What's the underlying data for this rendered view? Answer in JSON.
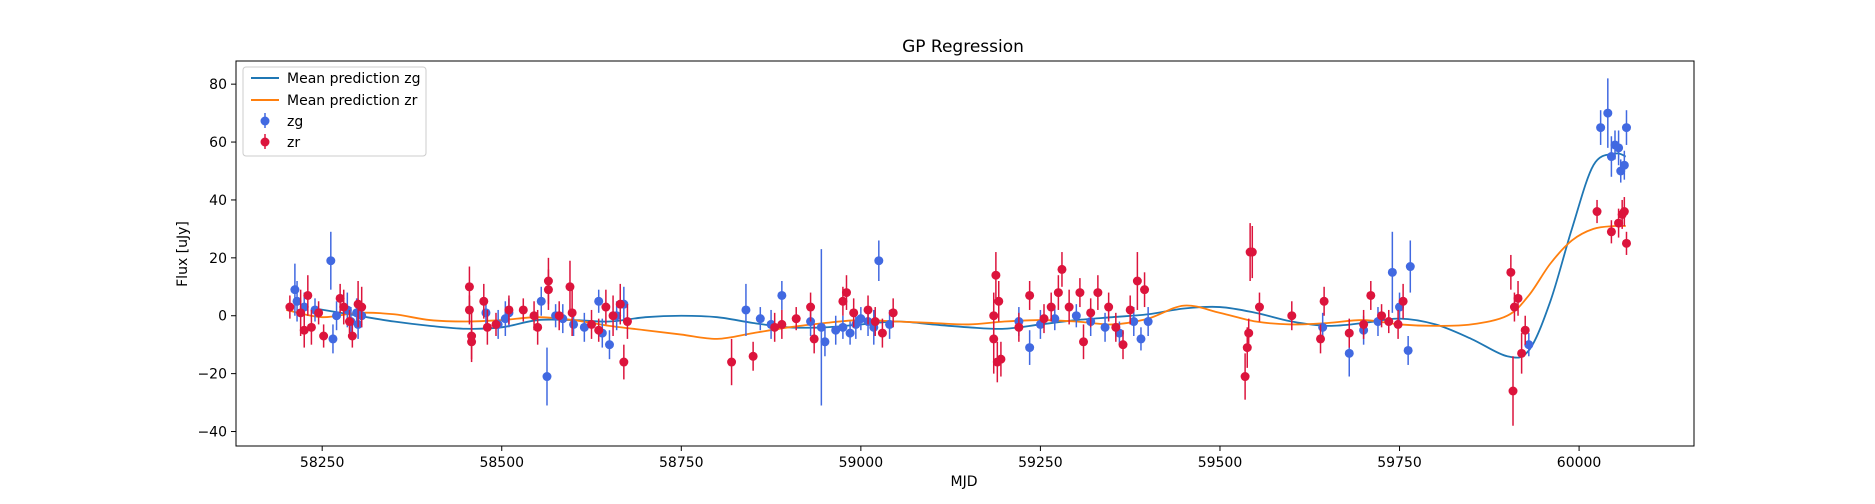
{
  "chart_data": {
    "type": "scatter",
    "title": "GP Regression",
    "xlabel": "MJD",
    "ylabel": "Flux [uJy]",
    "xlim": [
      58130,
      60160
    ],
    "ylim": [
      -45,
      88
    ],
    "xticks": [
      58250,
      58500,
      58750,
      59000,
      59250,
      59500,
      59750,
      60000
    ],
    "yticks": [
      -40,
      -20,
      0,
      20,
      40,
      60,
      80
    ],
    "grid": false,
    "legend_position": "top-left",
    "legend": [
      "Mean prediction zg",
      "Mean prediction zr",
      "zg",
      "zr"
    ],
    "series": [
      {
        "name": "Mean prediction zg",
        "kind": "line",
        "color": "#1f77b4",
        "x": [
          58240,
          58300,
          58350,
          58400,
          58450,
          58500,
          58550,
          58600,
          58650,
          58700,
          58750,
          58800,
          58850,
          58900,
          58950,
          59000,
          59050,
          59100,
          59150,
          59200,
          59250,
          59300,
          59350,
          59400,
          59450,
          59500,
          59550,
          59600,
          59650,
          59700,
          59750,
          59800,
          59850,
          59900,
          59930,
          59960,
          59990,
          60020,
          60050,
          60065
        ],
        "y": [
          2.5,
          0,
          -2,
          -3.5,
          -4.5,
          -4,
          -1.5,
          -1.5,
          -2,
          -0.5,
          0,
          -0.5,
          -2.5,
          -4,
          -4,
          -3,
          -2,
          -3,
          -4,
          -4.5,
          -3,
          -1.5,
          -0.5,
          0.5,
          2.5,
          3,
          1,
          -2,
          -3.5,
          -2.5,
          -1,
          -3,
          -8,
          -14,
          -12,
          5,
          30,
          52,
          56,
          55
        ]
      },
      {
        "name": "Mean prediction zr",
        "kind": "line",
        "color": "#ff7f0e",
        "x": [
          58200,
          58250,
          58300,
          58350,
          58400,
          58450,
          58500,
          58550,
          58600,
          58650,
          58700,
          58750,
          58800,
          58850,
          58900,
          58950,
          59000,
          59050,
          59100,
          59150,
          59200,
          59250,
          59300,
          59350,
          59400,
          59450,
          59500,
          59550,
          59600,
          59650,
          59700,
          59750,
          59800,
          59850,
          59900,
          59930,
          59960,
          59990,
          60020,
          60050,
          60065
        ],
        "y": [
          2,
          -0.5,
          1,
          0.5,
          -1.5,
          -2,
          -1.5,
          -0.5,
          -1.5,
          -3.5,
          -5,
          -6.5,
          -8,
          -6,
          -4,
          -2.5,
          -1.5,
          -2,
          -2.5,
          -3,
          -2,
          -1.5,
          -2,
          -3,
          -1,
          3.5,
          1,
          -2,
          -3,
          -2.5,
          -1.5,
          -3,
          -3.5,
          -3,
          0,
          7,
          18,
          26,
          30,
          31,
          31
        ]
      },
      {
        "name": "zg",
        "kind": "errorbar",
        "color": "#4169e1",
        "points": [
          [
            58212,
            9,
            9
          ],
          [
            58215,
            5,
            7
          ],
          [
            58225,
            3,
            5
          ],
          [
            58240,
            2,
            4
          ],
          [
            58262,
            19,
            10
          ],
          [
            58265,
            -8,
            5
          ],
          [
            58270,
            0,
            5
          ],
          [
            58285,
            2,
            6
          ],
          [
            58290,
            -2,
            5
          ],
          [
            58298,
            1,
            5
          ],
          [
            58300,
            -3,
            5
          ],
          [
            58305,
            0,
            4
          ],
          [
            58478,
            1,
            5
          ],
          [
            58495,
            -3,
            5
          ],
          [
            58505,
            -1,
            6
          ],
          [
            58510,
            1,
            5
          ],
          [
            58555,
            5,
            5
          ],
          [
            58563,
            -21,
            10
          ],
          [
            58575,
            0,
            4
          ],
          [
            58585,
            -1,
            5
          ],
          [
            58600,
            -3,
            4
          ],
          [
            58615,
            -4,
            5
          ],
          [
            58635,
            5,
            4
          ],
          [
            58640,
            -6,
            5
          ],
          [
            58650,
            -10,
            5
          ],
          [
            58660,
            0,
            5
          ],
          [
            58670,
            4,
            6
          ],
          [
            58840,
            2,
            9
          ],
          [
            58860,
            -1,
            4
          ],
          [
            58875,
            -3,
            5
          ],
          [
            58890,
            7,
            5
          ],
          [
            58930,
            -2,
            5
          ],
          [
            58945,
            -4,
            27
          ],
          [
            58950,
            -9,
            5
          ],
          [
            58965,
            -5,
            5
          ],
          [
            58975,
            -4,
            4
          ],
          [
            58985,
            -6,
            4
          ],
          [
            58993,
            -3,
            5
          ],
          [
            59000,
            -1,
            4
          ],
          [
            59010,
            -2,
            5
          ],
          [
            59018,
            -4,
            6
          ],
          [
            59025,
            19,
            7
          ],
          [
            59040,
            -3,
            5
          ],
          [
            59220,
            -2,
            5
          ],
          [
            59235,
            -11,
            6
          ],
          [
            59250,
            -3,
            5
          ],
          [
            59270,
            -1,
            4
          ],
          [
            59300,
            0,
            4
          ],
          [
            59320,
            -2,
            5
          ],
          [
            59340,
            -4,
            5
          ],
          [
            59360,
            -6,
            4
          ],
          [
            59380,
            -2,
            5
          ],
          [
            59390,
            -8,
            4
          ],
          [
            59400,
            -2,
            5
          ],
          [
            59643,
            -4,
            5
          ],
          [
            59680,
            -13,
            8
          ],
          [
            59700,
            -5,
            5
          ],
          [
            59720,
            -2,
            5
          ],
          [
            59740,
            15,
            14
          ],
          [
            59750,
            3,
            5
          ],
          [
            59762,
            -12,
            5
          ],
          [
            59765,
            17,
            9
          ],
          [
            59930,
            -10,
            4
          ],
          [
            60030,
            65,
            6
          ],
          [
            60040,
            70,
            12
          ],
          [
            60045,
            55,
            7
          ],
          [
            60050,
            59,
            5
          ],
          [
            60055,
            58,
            6
          ],
          [
            60058,
            50,
            4
          ],
          [
            60063,
            52,
            5
          ],
          [
            60066,
            65,
            6
          ]
        ]
      },
      {
        "name": "zr",
        "kind": "errorbar",
        "color": "#dc143c",
        "points": [
          [
            58205,
            3,
            4
          ],
          [
            58220,
            1,
            8
          ],
          [
            58225,
            -5,
            6
          ],
          [
            58230,
            7,
            7
          ],
          [
            58235,
            -4,
            6
          ],
          [
            58245,
            1,
            4
          ],
          [
            58252,
            -7,
            4
          ],
          [
            58275,
            6,
            5
          ],
          [
            58280,
            3,
            6
          ],
          [
            58288,
            -2,
            4
          ],
          [
            58292,
            -7,
            4
          ],
          [
            58300,
            4,
            8
          ],
          [
            58305,
            3,
            7
          ],
          [
            58455,
            10,
            7
          ],
          [
            58455,
            2,
            5
          ],
          [
            58458,
            -7,
            9
          ],
          [
            58458,
            -9,
            6
          ],
          [
            58475,
            5,
            6
          ],
          [
            58480,
            -4,
            6
          ],
          [
            58492,
            -3,
            4
          ],
          [
            58510,
            2,
            5
          ],
          [
            58530,
            2,
            4
          ],
          [
            58545,
            0,
            5
          ],
          [
            58550,
            -4,
            6
          ],
          [
            58565,
            12,
            8
          ],
          [
            58565,
            9,
            7
          ],
          [
            58580,
            0,
            5
          ],
          [
            58595,
            10,
            9
          ],
          [
            58598,
            1,
            8
          ],
          [
            58625,
            -3,
            5
          ],
          [
            58635,
            -5,
            4
          ],
          [
            58645,
            3,
            6
          ],
          [
            58655,
            0,
            7
          ],
          [
            58665,
            4,
            7
          ],
          [
            58670,
            -16,
            6
          ],
          [
            58675,
            -2,
            6
          ],
          [
            58820,
            -16,
            8
          ],
          [
            58850,
            -14,
            5
          ],
          [
            58880,
            -4,
            5
          ],
          [
            58890,
            -3,
            5
          ],
          [
            58910,
            -1,
            4
          ],
          [
            58930,
            3,
            5
          ],
          [
            58935,
            -8,
            5
          ],
          [
            58975,
            5,
            5
          ],
          [
            58980,
            8,
            6
          ],
          [
            58990,
            1,
            5
          ],
          [
            59010,
            2,
            5
          ],
          [
            59020,
            -2,
            5
          ],
          [
            59030,
            -6,
            5
          ],
          [
            59045,
            1,
            5
          ],
          [
            59185,
            0,
            8
          ],
          [
            59185,
            -8,
            12
          ],
          [
            59188,
            14,
            8
          ],
          [
            59190,
            -16,
            7
          ],
          [
            59192,
            5,
            7
          ],
          [
            59195,
            -15,
            6
          ],
          [
            59220,
            -4,
            5
          ],
          [
            59235,
            7,
            5
          ],
          [
            59255,
            -1,
            5
          ],
          [
            59265,
            3,
            5
          ],
          [
            59275,
            8,
            6
          ],
          [
            59280,
            16,
            6
          ],
          [
            59290,
            3,
            6
          ],
          [
            59305,
            8,
            5
          ],
          [
            59310,
            -9,
            6
          ],
          [
            59320,
            1,
            5
          ],
          [
            59330,
            8,
            6
          ],
          [
            59345,
            3,
            5
          ],
          [
            59355,
            -4,
            5
          ],
          [
            59365,
            -10,
            5
          ],
          [
            59375,
            2,
            5
          ],
          [
            59385,
            12,
            10
          ],
          [
            59395,
            9,
            6
          ],
          [
            59535,
            -21,
            8
          ],
          [
            59538,
            -11,
            7
          ],
          [
            59540,
            -6,
            5
          ],
          [
            59542,
            22,
            10
          ],
          [
            59545,
            22,
            9
          ],
          [
            59555,
            3,
            5
          ],
          [
            59600,
            0,
            5
          ],
          [
            59640,
            -8,
            5
          ],
          [
            59645,
            5,
            5
          ],
          [
            59680,
            -6,
            5
          ],
          [
            59700,
            -3,
            5
          ],
          [
            59710,
            7,
            5
          ],
          [
            59725,
            0,
            4
          ],
          [
            59735,
            -2,
            4
          ],
          [
            59748,
            -3,
            5
          ],
          [
            59755,
            5,
            6
          ],
          [
            59905,
            15,
            6
          ],
          [
            59908,
            -26,
            12
          ],
          [
            59910,
            3,
            5
          ],
          [
            59915,
            6,
            6
          ],
          [
            59920,
            -13,
            7
          ],
          [
            59925,
            -5,
            5
          ],
          [
            60025,
            36,
            4
          ],
          [
            60045,
            29,
            4
          ],
          [
            60055,
            32,
            5
          ],
          [
            60060,
            35,
            5
          ],
          [
            60063,
            36,
            5
          ],
          [
            60066,
            25,
            4
          ]
        ]
      }
    ]
  }
}
